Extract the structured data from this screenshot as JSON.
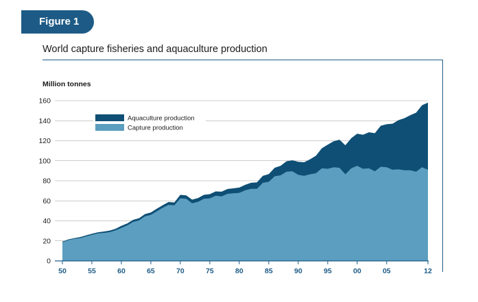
{
  "header": {
    "badge": "Figure 1",
    "title": "World capture fisheries and aquaculture production"
  },
  "chart_data": {
    "type": "area",
    "stacked": true,
    "unit_label": "Million tonnes",
    "ylim": [
      0,
      160
    ],
    "yticks": [
      0,
      20,
      40,
      60,
      80,
      100,
      120,
      140,
      160
    ],
    "xlim": [
      1950,
      2012
    ],
    "xticks": [
      {
        "x": 1950,
        "label": "50"
      },
      {
        "x": 1955,
        "label": "55"
      },
      {
        "x": 1960,
        "label": "60"
      },
      {
        "x": 1965,
        "label": "65"
      },
      {
        "x": 1970,
        "label": "70"
      },
      {
        "x": 1975,
        "label": "75"
      },
      {
        "x": 1980,
        "label": "80"
      },
      {
        "x": 1985,
        "label": "85"
      },
      {
        "x": 1990,
        "label": "90"
      },
      {
        "x": 1995,
        "label": "95"
      },
      {
        "x": 2000,
        "label": "00"
      },
      {
        "x": 2005,
        "label": "05"
      },
      {
        "x": 2012,
        "label": "12"
      }
    ],
    "grid": true,
    "legend_position": "top-left",
    "x": [
      1950,
      1951,
      1952,
      1953,
      1954,
      1955,
      1956,
      1957,
      1958,
      1959,
      1960,
      1961,
      1962,
      1963,
      1964,
      1965,
      1966,
      1967,
      1968,
      1969,
      1970,
      1971,
      1972,
      1973,
      1974,
      1975,
      1976,
      1977,
      1978,
      1979,
      1980,
      1981,
      1982,
      1983,
      1984,
      1985,
      1986,
      1987,
      1988,
      1989,
      1990,
      1991,
      1992,
      1993,
      1994,
      1995,
      1996,
      1997,
      1998,
      1999,
      2000,
      2001,
      2002,
      2003,
      2004,
      2005,
      2006,
      2007,
      2008,
      2009,
      2010,
      2011,
      2012
    ],
    "series": [
      {
        "name": "Capture production",
        "color": "#5b9ebf",
        "values": [
          18.7,
          20.8,
          22.0,
          22.8,
          24.5,
          26.0,
          27.4,
          28.0,
          28.7,
          30.5,
          33.0,
          35.5,
          39.0,
          40.5,
          44.5,
          46.0,
          49.5,
          53.0,
          56.0,
          55.5,
          62.5,
          62.0,
          57.5,
          59.0,
          62.0,
          62.5,
          65.0,
          64.5,
          67.0,
          67.5,
          68.0,
          70.5,
          72.0,
          72.0,
          78.0,
          79.0,
          84.5,
          85.5,
          89.0,
          89.5,
          86.0,
          85.0,
          86.5,
          87.5,
          92.5,
          92.0,
          93.5,
          93.0,
          86.5,
          92.5,
          95.0,
          92.0,
          92.5,
          89.5,
          94.0,
          93.5,
          91.0,
          91.5,
          90.5,
          90.5,
          89.0,
          93.5,
          91.0
        ]
      },
      {
        "name": "Aquaculture production",
        "color": "#0f4f75",
        "values": [
          0.6,
          0.7,
          0.8,
          0.9,
          1.0,
          1.1,
          1.2,
          1.3,
          1.5,
          1.6,
          2.0,
          2.0,
          2.0,
          2.2,
          2.3,
          2.4,
          2.5,
          2.6,
          2.8,
          2.9,
          3.5,
          3.5,
          3.7,
          3.8,
          4.0,
          4.2,
          4.4,
          4.6,
          4.8,
          5.0,
          5.2,
          5.5,
          6.0,
          6.5,
          7.0,
          7.7,
          8.5,
          9.5,
          10.5,
          11.0,
          13.0,
          13.5,
          15.0,
          17.5,
          20.0,
          24.0,
          26.0,
          28.0,
          29.0,
          30.0,
          32.0,
          34.0,
          36.0,
          38.0,
          41.0,
          43.0,
          46.0,
          49.0,
          52.0,
          55.0,
          59.0,
          62.0,
          67.0
        ]
      }
    ]
  }
}
